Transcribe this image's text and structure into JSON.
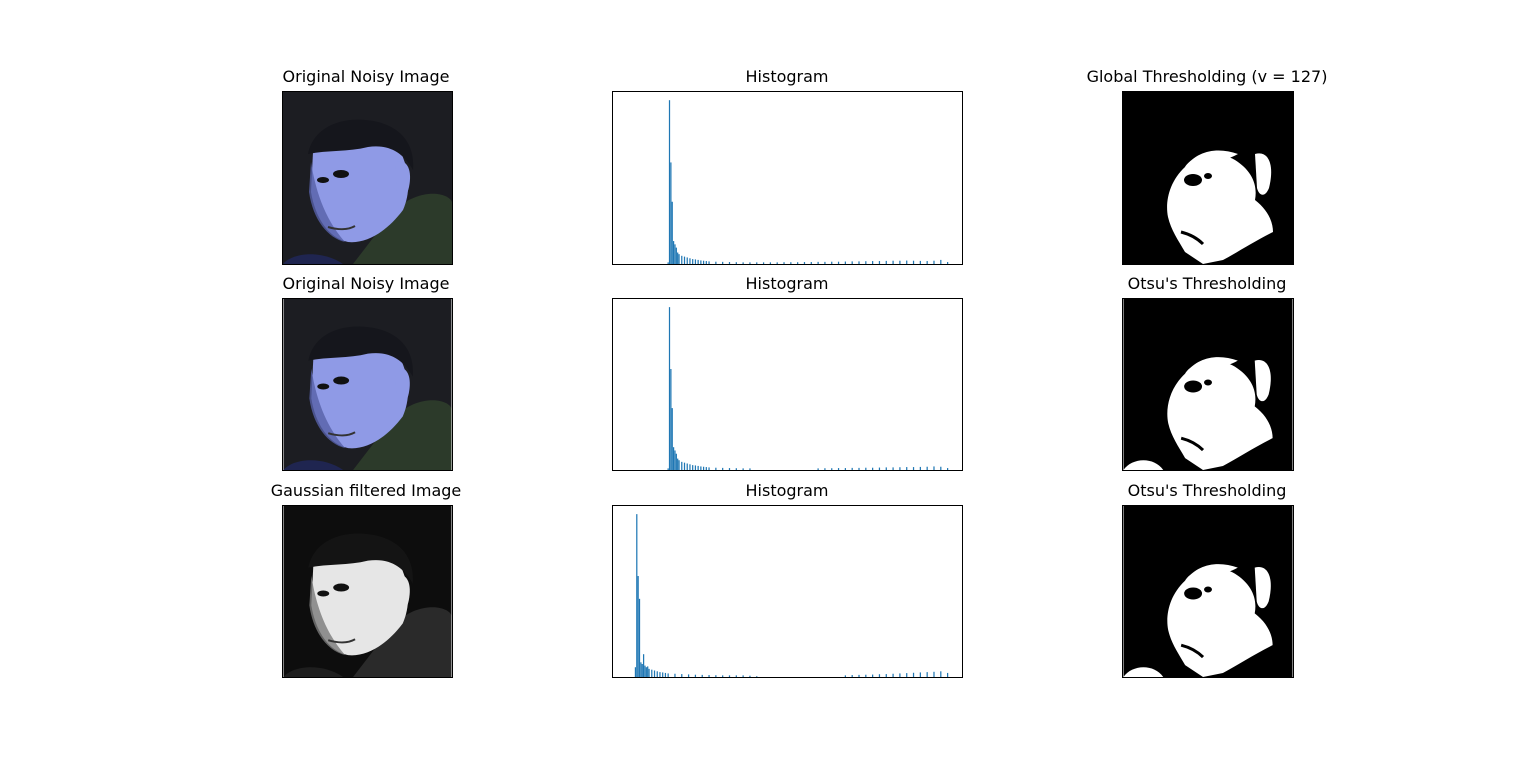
{
  "colors": {
    "bar": "#1f77b4",
    "frame": "#000000",
    "background": "#ffffff",
    "noisy_photo_bg": "#1c1d22",
    "noisy_photo_face": "#8f9ae6",
    "gray_photo_face": "#e6e6e6"
  },
  "rows": [
    {
      "image_title": "Original Noisy Image",
      "histogram_title": "Histogram",
      "threshold_title": "Global Thresholding (v = 127)",
      "image_style": "color"
    },
    {
      "image_title": "Original Noisy Image",
      "histogram_title": "Histogram",
      "threshold_title": "Otsu's Thresholding",
      "image_style": "color"
    },
    {
      "image_title": "Gaussian filtered Image",
      "histogram_title": "Histogram",
      "threshold_title": "Otsu's Thresholding",
      "image_style": "gray"
    }
  ],
  "chart_data": [
    {
      "type": "bar",
      "title": "Histogram",
      "xlabel": "",
      "ylabel": "",
      "xlim": [
        0,
        256
      ],
      "ylim": [
        0,
        1.05
      ],
      "grid": false,
      "ticks_shown": false,
      "x": [
        40,
        41,
        42,
        43,
        44,
        45,
        46,
        47,
        48,
        50,
        52,
        54,
        56,
        58,
        60,
        62,
        64,
        66,
        68,
        70,
        75,
        80,
        85,
        90,
        95,
        100,
        105,
        110,
        115,
        120,
        125,
        130,
        135,
        140,
        145,
        150,
        155,
        160,
        165,
        170,
        175,
        180,
        185,
        190,
        195,
        200,
        205,
        210,
        215,
        220,
        225,
        230,
        235,
        240,
        245,
        250
      ],
      "y": [
        0.01,
        1.0,
        0.62,
        0.38,
        0.14,
        0.12,
        0.1,
        0.07,
        0.06,
        0.05,
        0.045,
        0.04,
        0.035,
        0.03,
        0.028,
        0.025,
        0.022,
        0.02,
        0.018,
        0.016,
        0.014,
        0.013,
        0.012,
        0.011,
        0.01,
        0.01,
        0.01,
        0.01,
        0.01,
        0.01,
        0.011,
        0.011,
        0.011,
        0.012,
        0.012,
        0.013,
        0.013,
        0.014,
        0.014,
        0.015,
        0.016,
        0.016,
        0.017,
        0.018,
        0.018,
        0.019,
        0.02,
        0.02,
        0.021,
        0.02,
        0.019,
        0.018,
        0.02,
        0.025,
        0.012,
        0.0
      ]
    },
    {
      "type": "bar",
      "title": "Histogram",
      "xlabel": "",
      "ylabel": "",
      "xlim": [
        0,
        256
      ],
      "ylim": [
        0,
        1.05
      ],
      "grid": false,
      "ticks_shown": false,
      "x": [
        40,
        41,
        42,
        43,
        44,
        45,
        46,
        47,
        48,
        50,
        52,
        54,
        56,
        58,
        60,
        62,
        64,
        66,
        68,
        70,
        75,
        80,
        85,
        90,
        95,
        100,
        150,
        155,
        160,
        165,
        170,
        175,
        180,
        185,
        190,
        195,
        200,
        205,
        210,
        215,
        220,
        225,
        230,
        235,
        240,
        245
      ],
      "y": [
        0.01,
        1.0,
        0.62,
        0.38,
        0.14,
        0.12,
        0.1,
        0.07,
        0.06,
        0.05,
        0.045,
        0.04,
        0.035,
        0.03,
        0.028,
        0.025,
        0.022,
        0.02,
        0.018,
        0.016,
        0.014,
        0.013,
        0.012,
        0.011,
        0.01,
        0.01,
        0.01,
        0.011,
        0.011,
        0.012,
        0.012,
        0.013,
        0.013,
        0.014,
        0.014,
        0.015,
        0.016,
        0.016,
        0.017,
        0.018,
        0.018,
        0.019,
        0.02,
        0.022,
        0.02,
        0.012
      ]
    },
    {
      "type": "bar",
      "title": "Histogram",
      "xlabel": "",
      "ylabel": "",
      "xlim": [
        0,
        256
      ],
      "ylim": [
        0,
        1.05
      ],
      "grid": false,
      "ticks_shown": false,
      "x": [
        16,
        17,
        18,
        19,
        20,
        21,
        22,
        23,
        24,
        25,
        26,
        28,
        30,
        32,
        34,
        36,
        38,
        40,
        45,
        50,
        55,
        60,
        65,
        70,
        75,
        80,
        85,
        90,
        95,
        100,
        105,
        170,
        175,
        180,
        185,
        190,
        195,
        200,
        205,
        210,
        215,
        220,
        225,
        230,
        235,
        240,
        245
      ],
      "y": [
        0.06,
        1.0,
        0.62,
        0.48,
        0.09,
        0.08,
        0.14,
        0.07,
        0.06,
        0.065,
        0.05,
        0.045,
        0.04,
        0.035,
        0.03,
        0.028,
        0.025,
        0.022,
        0.02,
        0.018,
        0.016,
        0.014,
        0.013,
        0.012,
        0.011,
        0.01,
        0.01,
        0.01,
        0.01,
        0.008,
        0.005,
        0.01,
        0.012,
        0.013,
        0.014,
        0.015,
        0.017,
        0.018,
        0.02,
        0.022,
        0.024,
        0.026,
        0.028,
        0.03,
        0.032,
        0.035,
        0.025
      ]
    }
  ]
}
